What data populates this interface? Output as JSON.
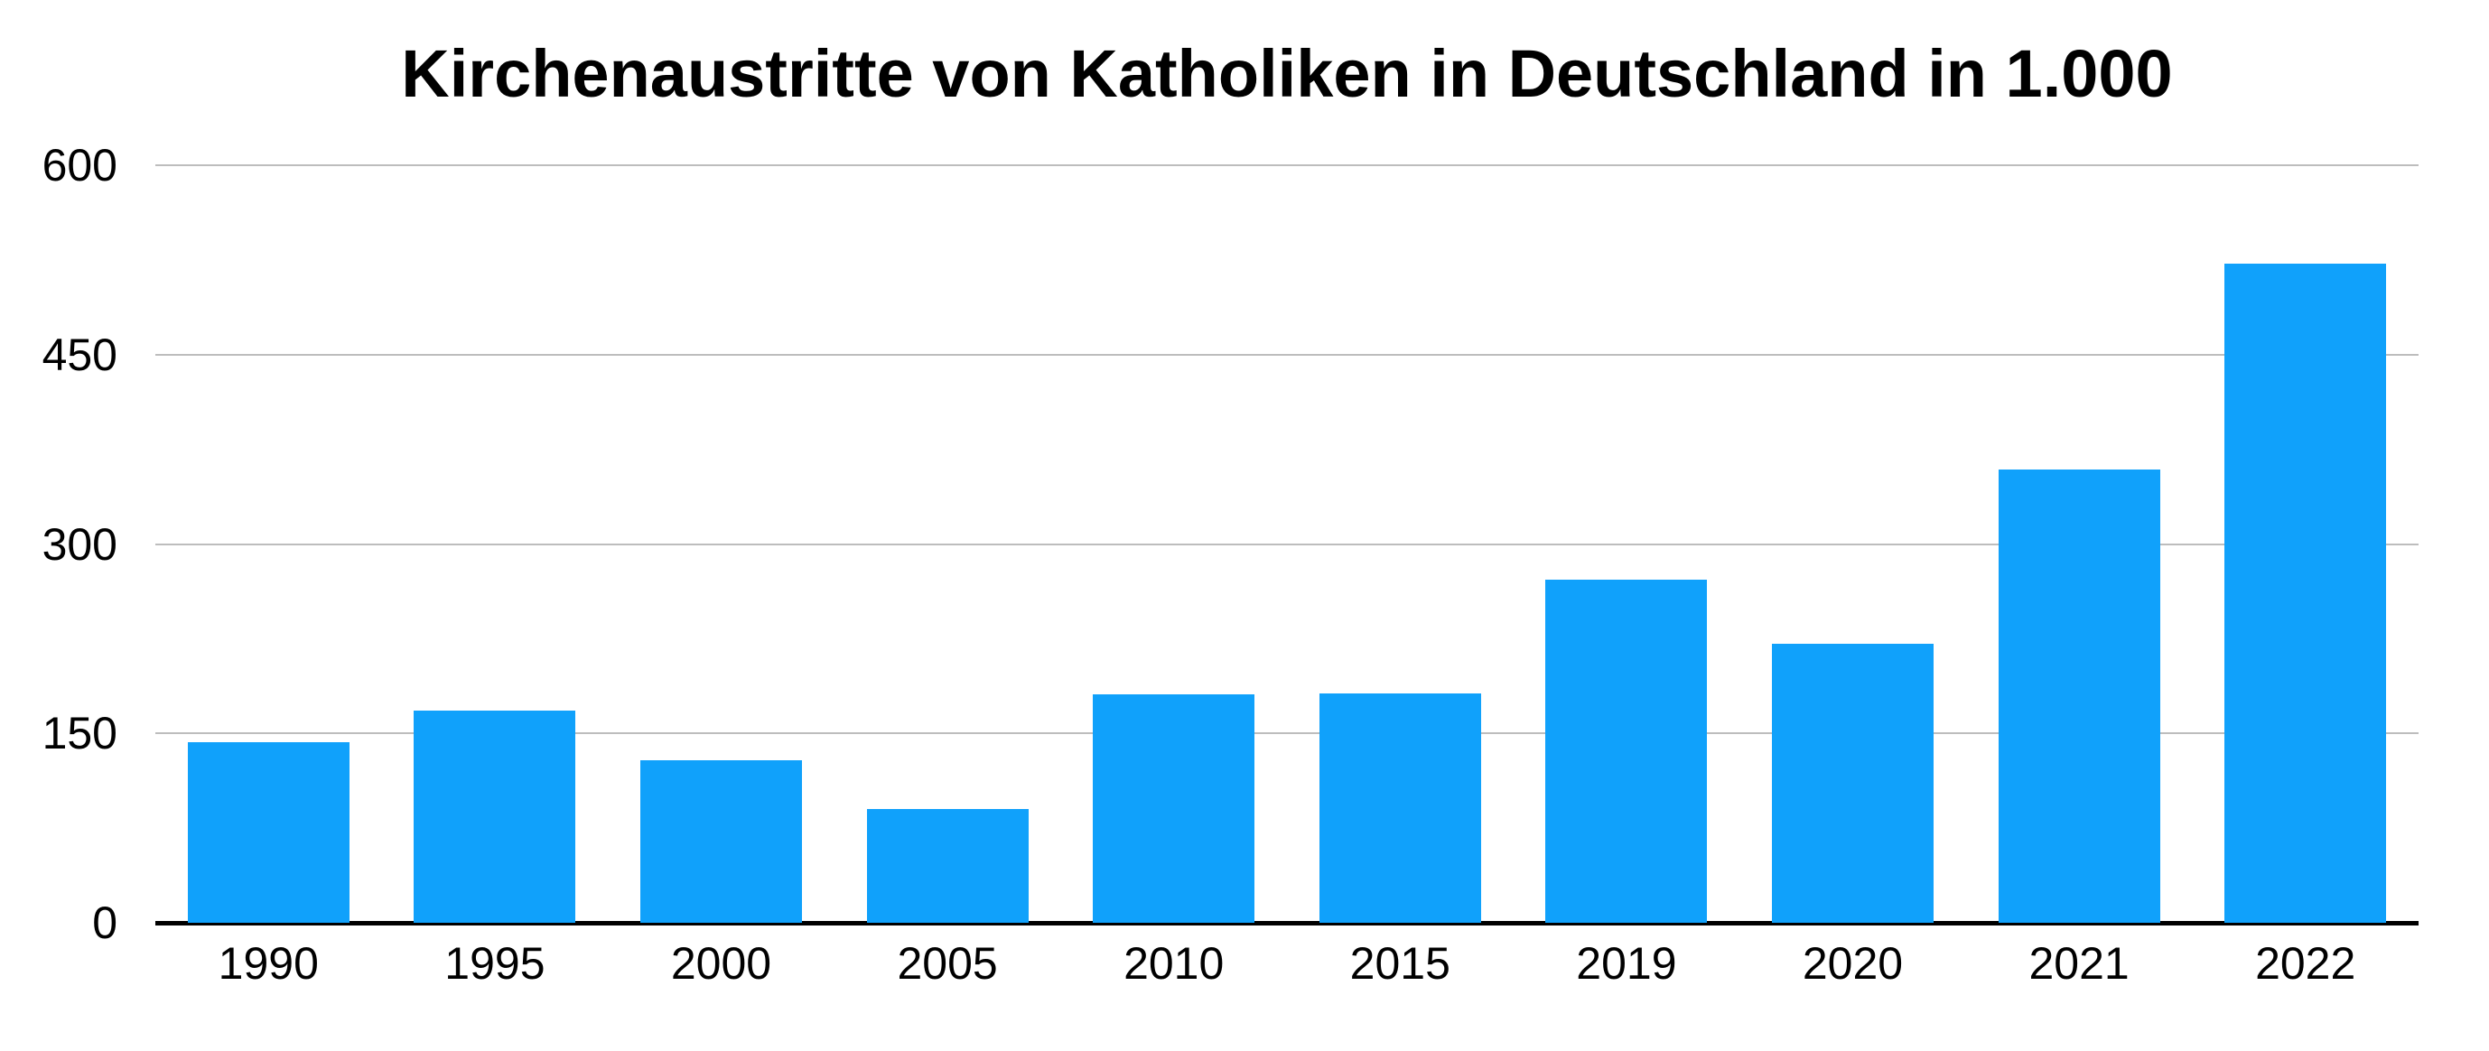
{
  "chart_data": {
    "type": "bar",
    "title": "Kirchenaustritte von Katholiken in Deutschland in 1.000",
    "categories": [
      "1990",
      "1995",
      "2000",
      "2005",
      "2010",
      "2015",
      "2019",
      "2020",
      "2021",
      "2022"
    ],
    "values": [
      143,
      168,
      129,
      90,
      181,
      182,
      272,
      221,
      359,
      522
    ],
    "series_name": "Kirchenaustritte von Katholiken in 1.000",
    "xlabel": "",
    "ylabel": "",
    "ylim": [
      0,
      600
    ],
    "yticks": [
      0,
      150,
      300,
      450,
      600
    ],
    "grid": true,
    "legend_position": "none",
    "colors": {
      "bar": "#10A1FB",
      "gridline": "#BDBDBD",
      "axis": "#000000",
      "text": "#000000",
      "background": "#FFFFFF"
    }
  }
}
